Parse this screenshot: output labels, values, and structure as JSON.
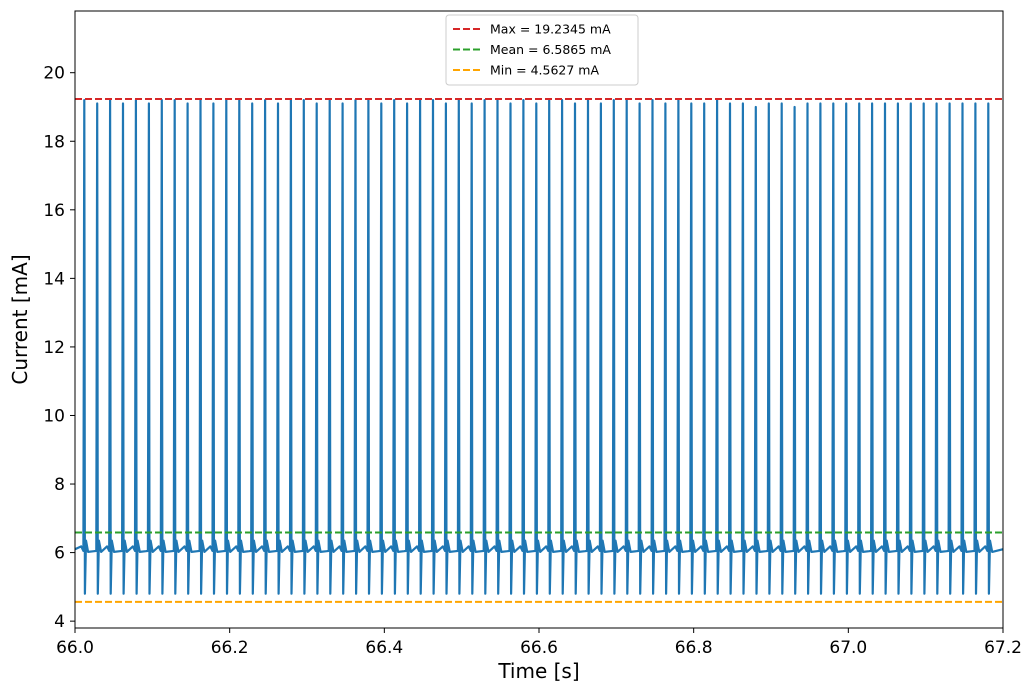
{
  "chart_data": {
    "type": "line",
    "title": "",
    "xlabel": "Time [s]",
    "ylabel": "Current [mA]",
    "xlim": [
      66.0,
      67.2
    ],
    "ylim": [
      3.8,
      21.8
    ],
    "grid": false,
    "legend_position": "top-center",
    "x_ticks": [
      "66.0",
      "66.2",
      "66.4",
      "66.6",
      "66.8",
      "67.0",
      "67.2"
    ],
    "y_ticks": [
      "4",
      "6",
      "8",
      "10",
      "12",
      "14",
      "16",
      "18",
      "20"
    ],
    "series": [
      {
        "color": "#1f77b4",
        "baseline": 6.1,
        "pulse_period_s": 0.0167,
        "pulse_count": 71,
        "first_pulse_s": 66.012,
        "peak_values": [
          19.2,
          19.1,
          19.2,
          19.1,
          19.2,
          19.1,
          19.2,
          19.2,
          19.1,
          19.2,
          19.1,
          19.2,
          19.2,
          19.1,
          19.2,
          19.1,
          19.2,
          19.2,
          19.1,
          19.2,
          19.1,
          19.2,
          19.2,
          19.1,
          19.2,
          19.1,
          19.2,
          19.2,
          19.1,
          19.2,
          19.1,
          19.2,
          19.2,
          19.1,
          19.2,
          19.1,
          19.2,
          19.2,
          19.1,
          19.2,
          19.1,
          19.2,
          19.2,
          19.1,
          19.2,
          19.1,
          19.2,
          19.1,
          19.1,
          19.2,
          19.1,
          19.1,
          19.0,
          19.1,
          19.1,
          19.0,
          19.1,
          19.1,
          19.1,
          19.1,
          19.1,
          19.1,
          19.1,
          19.1,
          19.1,
          19.1,
          19.1,
          19.1,
          19.1,
          19.1,
          19.1
        ],
        "trough_value": 4.8
      }
    ],
    "reference_lines": [
      {
        "label": "Max = 19.2345 mA",
        "value": 19.2345,
        "color": "#d62728",
        "style": "dashed"
      },
      {
        "label": "Mean = 6.5865 mA",
        "value": 6.5865,
        "color": "#2ca02c",
        "style": "dashed"
      },
      {
        "label": "Min = 4.5627 mA",
        "value": 4.5627,
        "color": "#ffa500",
        "style": "dashed"
      }
    ]
  }
}
